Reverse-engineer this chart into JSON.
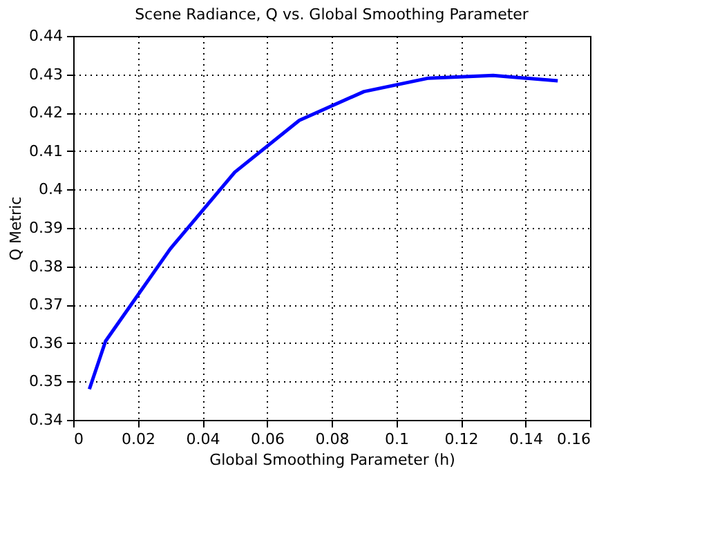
{
  "chart_data": {
    "type": "line",
    "title": "Scene Radiance, Q vs. Global Smoothing Parameter",
    "xlabel": "Global Smoothing Parameter (h)",
    "ylabel": "Q Metric",
    "x": [
      0.005,
      0.01,
      0.03,
      0.05,
      0.07,
      0.09,
      0.11,
      0.13,
      0.15
    ],
    "series": [
      {
        "color": "#0000ff",
        "values": [
          0.348,
          0.3605,
          0.3845,
          0.4045,
          0.418,
          0.4255,
          0.429,
          0.4297,
          0.4283
        ]
      }
    ],
    "xlim": [
      0,
      0.16
    ],
    "xticks": [
      0,
      0.02,
      0.04,
      0.06,
      0.08,
      0.1,
      0.12,
      0.14,
      0.16
    ],
    "ylim": [
      0.34,
      0.44
    ],
    "yticks": [
      0.34,
      0.35,
      0.36,
      0.37,
      0.38,
      0.39,
      0.4,
      0.41,
      0.42,
      0.43,
      0.44
    ],
    "grid": true,
    "line_style": "solid"
  }
}
